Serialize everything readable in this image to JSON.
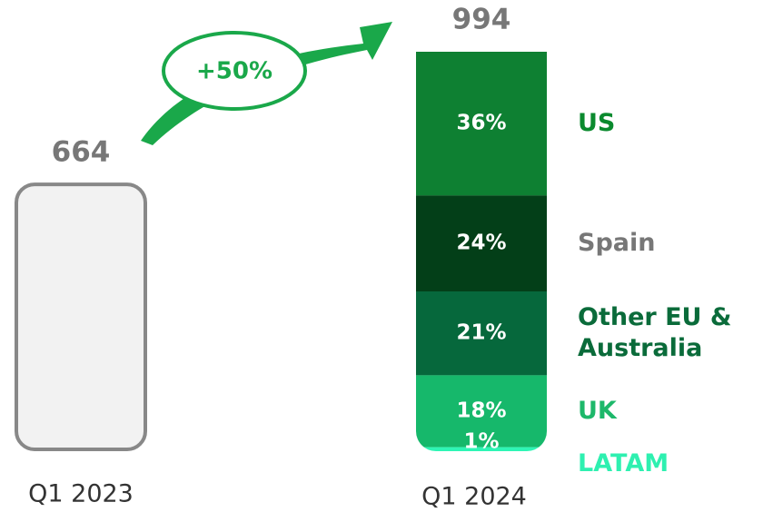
{
  "chart_data": {
    "type": "bar",
    "categories": [
      "Q1 2023",
      "Q1 2024"
    ],
    "values": [
      664,
      994
    ],
    "color": "#f2f2f2",
    "annotation": "+50%",
    "series": [
      {
        "name": "US",
        "color": "#0e8032",
        "label_color": "#0b8a2e",
        "values": [
          null,
          36
        ],
        "value_labels": [
          null,
          "36%"
        ]
      },
      {
        "name": "Spain",
        "color": "#033f18",
        "label_color": "#777777",
        "values": [
          null,
          24
        ],
        "value_labels": [
          null,
          "24%"
        ]
      },
      {
        "name": "Other EU & Australia",
        "color": "#06683c",
        "label_color": "#0a6b3a",
        "values": [
          null,
          21
        ],
        "value_labels": [
          null,
          "21%"
        ]
      },
      {
        "name": "UK",
        "color": "#16b86b",
        "label_color": "#1db86a",
        "values": [
          null,
          18
        ],
        "value_labels": [
          null,
          "18%"
        ]
      },
      {
        "name": "LATAM",
        "color": "#2ef5b5",
        "label_color": "#2ef0b0",
        "values": [
          null,
          1
        ],
        "value_labels": [
          null,
          "1%"
        ]
      }
    ]
  }
}
